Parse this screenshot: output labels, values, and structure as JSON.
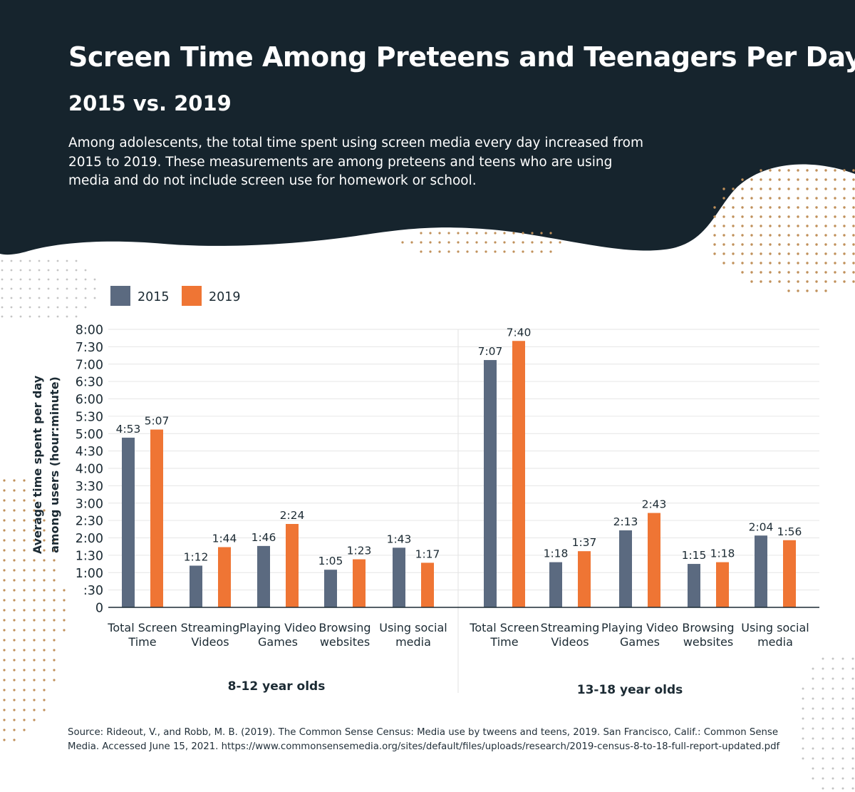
{
  "header": {
    "title": "Screen Time Among Preteens and Teenagers Per Day",
    "subtitle": "2015 vs. 2019",
    "description": "Among adolescents, the total time spent using screen media every day increased from 2015 to 2019. These measurements are among preteens and teens who are using media and do not include screen use for homework or school."
  },
  "source": "Source: Rideout, V., and Robb, M. B. (2019). The Common Sense Census: Media use by tweens and teens, 2019. San Francisco, Calif.: Common Sense Media. Accessed June 15, 2021. https://www.commonsensemedia.org/sites/default/files/uploads/research/2019-census-8-to-18-full-report-updated.pdf",
  "colors": {
    "header_bg": "#16242d",
    "series_2015": "#5b6a80",
    "series_2019": "#ef7534",
    "dots_tan": "#c0905a",
    "dots_grey": "#c4c4c4"
  },
  "chart_data": {
    "type": "bar",
    "ylabel": [
      "Average time spent per day",
      "among users (hour:minute)"
    ],
    "y_unit": "minutes",
    "ylim": [
      0,
      480
    ],
    "y_ticks": [
      {
        "value": 0,
        "label": "0"
      },
      {
        "value": 30,
        "label": ":30"
      },
      {
        "value": 60,
        "label": "1:00"
      },
      {
        "value": 90,
        "label": "1:30"
      },
      {
        "value": 120,
        "label": "2:00"
      },
      {
        "value": 150,
        "label": "2:30"
      },
      {
        "value": 180,
        "label": "3:00"
      },
      {
        "value": 210,
        "label": "3:30"
      },
      {
        "value": 240,
        "label": "4:00"
      },
      {
        "value": 270,
        "label": "4:30"
      },
      {
        "value": 300,
        "label": "5:00"
      },
      {
        "value": 330,
        "label": "5:30"
      },
      {
        "value": 360,
        "label": "6:00"
      },
      {
        "value": 390,
        "label": "6:30"
      },
      {
        "value": 420,
        "label": "7:00"
      },
      {
        "value": 450,
        "label": "7:30"
      },
      {
        "value": 480,
        "label": "8:00"
      }
    ],
    "grid": true,
    "legend_position": "top-left",
    "legend": [
      "2015",
      "2019"
    ],
    "groups": [
      {
        "name": "8-12 year olds",
        "categories": [
          [
            "Total Screen",
            "Time"
          ],
          [
            "Streaming",
            "Videos"
          ],
          [
            "Playing Video",
            "Games"
          ],
          [
            "Browsing",
            "websites"
          ],
          [
            "Using social",
            "media"
          ]
        ],
        "series": [
          {
            "name": "2015",
            "values": [
              293,
              72,
              106,
              65,
              103
            ],
            "labels": [
              "4:53",
              "1:12",
              "1:46",
              "1:05",
              "1:43"
            ]
          },
          {
            "name": "2019",
            "values": [
              307,
              104,
              144,
              83,
              77
            ],
            "labels": [
              "5:07",
              "1:44",
              "2:24",
              "1:23",
              "1:17"
            ]
          }
        ]
      },
      {
        "name": "13-18 year olds",
        "categories": [
          [
            "Total Screen",
            "Time"
          ],
          [
            "Streaming",
            "Videos"
          ],
          [
            "Playing Video",
            "Games"
          ],
          [
            "Browsing",
            "websites"
          ],
          [
            "Using social",
            "media"
          ]
        ],
        "series": [
          {
            "name": "2015",
            "values": [
              427,
              78,
              133,
              75,
              124
            ],
            "labels": [
              "7:07",
              "1:18",
              "2:13",
              "1:15",
              "2:04"
            ]
          },
          {
            "name": "2019",
            "values": [
              460,
              97,
              163,
              78,
              116
            ],
            "labels": [
              "7:40",
              "1:37",
              "2:43",
              "1:18",
              "1:56"
            ]
          }
        ]
      }
    ]
  }
}
